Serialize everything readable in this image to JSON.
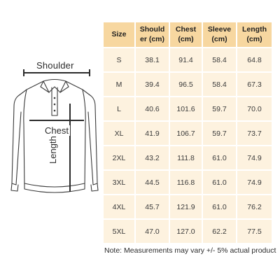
{
  "illustration": {
    "shoulder_label": "Shoulder",
    "chest_label": "Chest",
    "length_label": "Length",
    "garment_icon": "long-sleeve-polo-shirt-icon"
  },
  "table": {
    "headers": [
      "Size",
      "Should er (cm)",
      "Chest (cm)",
      "Sleeve (cm)",
      "Length (cm)"
    ],
    "rows": [
      [
        "S",
        "38.1",
        "91.4",
        "58.4",
        "64.8"
      ],
      [
        "M",
        "39.4",
        "96.5",
        "58.4",
        "67.3"
      ],
      [
        "L",
        "40.6",
        "101.6",
        "59.7",
        "70.0"
      ],
      [
        "XL",
        "41.9",
        "106.7",
        "59.7",
        "73.7"
      ],
      [
        "2XL",
        "43.2",
        "111.8",
        "61.0",
        "74.9"
      ],
      [
        "3XL",
        "44.5",
        "116.8",
        "61.0",
        "74.9"
      ],
      [
        "4XL",
        "45.7",
        "121.9",
        "61.0",
        "76.2"
      ],
      [
        "5XL",
        "47.0",
        "127.0",
        "62.2",
        "77.5"
      ]
    ]
  },
  "note": "Note: Measurements may vary +/- 5% actual product",
  "colors": {
    "header_bg": "#f7d7a0",
    "cell_bg": "#fdf2df",
    "measure_line": "#2b2b2b"
  }
}
